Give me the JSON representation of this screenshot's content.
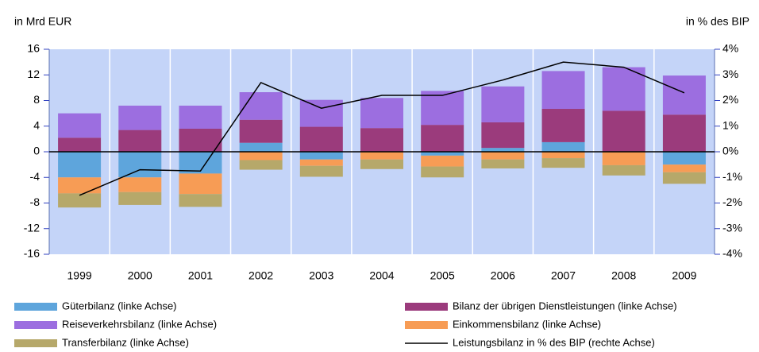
{
  "chart_data": {
    "type": "bar",
    "stacked": true,
    "ylabel": "in Mrd EUR",
    "y2label": "in % des BIP",
    "categories": [
      "1999",
      "2000",
      "2001",
      "2002",
      "2003",
      "2004",
      "2005",
      "2006",
      "2007",
      "2008",
      "2009"
    ],
    "series": [
      {
        "name": "Güterbilanz (linke Achse)",
        "color": "#5ea5dc",
        "values": [
          -4.0,
          -4.0,
          -3.4,
          1.4,
          -1.2,
          0,
          -0.6,
          0.6,
          1.5,
          0,
          -2.0
        ]
      },
      {
        "name": "Bilanz der übrigen Dienstleistungen (linke Achse)",
        "color": "#9b3b7c",
        "values": [
          2.2,
          3.4,
          3.6,
          3.6,
          3.9,
          3.7,
          4.2,
          4.0,
          5.2,
          6.4,
          5.8
        ]
      },
      {
        "name": "Reiseverkehrsbilanz (linke Achse)",
        "color": "#9c6ee0",
        "values": [
          3.8,
          3.8,
          3.6,
          4.3,
          4.2,
          4.7,
          5.3,
          5.6,
          5.9,
          6.8,
          6.1
        ]
      },
      {
        "name": "Einkommensbilanz (linke Achse)",
        "color": "#f79c55",
        "values": [
          -2.5,
          -2.3,
          -3.2,
          -1.3,
          -1.0,
          -1.2,
          -1.7,
          -1.2,
          -1.0,
          -2.1,
          -1.2
        ]
      },
      {
        "name": "Transferbilanz (linke Achse)",
        "color": "#b6a86a",
        "values": [
          -2.2,
          -2.0,
          -2.0,
          -1.5,
          -1.7,
          -1.5,
          -1.7,
          -1.4,
          -1.5,
          -1.6,
          -1.8
        ]
      },
      {
        "name": "Leistungsbilanz in % des BIP (rechte Achse)",
        "color": "#000000",
        "type": "line",
        "axis": "y2",
        "values": [
          -1.7,
          -0.7,
          -0.75,
          2.7,
          1.7,
          2.2,
          2.2,
          2.8,
          3.5,
          3.3,
          2.3
        ]
      }
    ],
    "ylim": [
      -16,
      16
    ],
    "yticks": [
      16,
      12,
      8,
      4,
      0,
      -4,
      -8,
      -12,
      -16
    ],
    "y2lim": [
      -4,
      4
    ],
    "y2ticks": [
      {
        "value": 4,
        "label": "4%"
      },
      {
        "value": 3,
        "label": "3%"
      },
      {
        "value": 2,
        "label": "2%"
      },
      {
        "value": 1,
        "label": "1%"
      },
      {
        "value": 0,
        "label": "0%"
      },
      {
        "value": -1,
        "label": "-1%"
      },
      {
        "value": -2,
        "label": "-2%"
      },
      {
        "value": -3,
        "label": "-3%"
      },
      {
        "value": -4,
        "label": "-4%"
      }
    ],
    "legend": "bottom"
  }
}
